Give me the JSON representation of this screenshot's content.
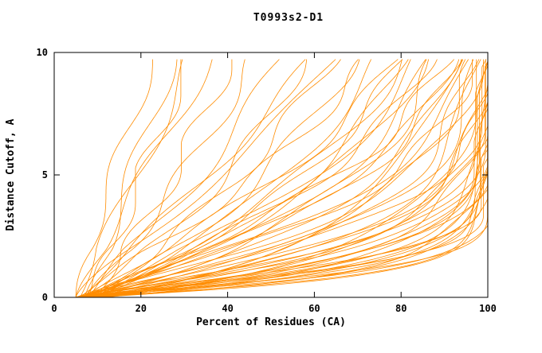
{
  "chart_data": {
    "type": "line",
    "title": "T0993s2-D1",
    "xlabel": "Percent of Residues (CA)",
    "ylabel": "Distance Cutoff, A",
    "xlim": [
      0,
      100
    ],
    "ylim": [
      0,
      10
    ],
    "xticks": [
      0,
      20,
      40,
      60,
      80,
      100
    ],
    "yticks": [
      0,
      5,
      10
    ],
    "grid": false,
    "legend": "none",
    "background": "#ffffff",
    "axis_color": "#000000",
    "line_color": "#ff8c00",
    "y_max_drawn": 9.72,
    "series_note": "Approximately 64 overlapping model GDT curves (percent of CA residues under distance cutoff). Each curve approximated as percent(y) = x0 + (100-x0)*(1-exp(-(y/a)^b)) plus a small sinusoidal wiggle, monotonically clamped.",
    "curve_params_format": [
      "a",
      "b",
      "x0",
      "amp",
      "freq",
      "phase"
    ],
    "curves": [
      [
        0.8,
        1.0,
        6,
        1.5,
        1.2,
        0.3
      ],
      [
        0.85,
        1.1,
        7,
        2.0,
        0.9,
        1.7
      ],
      [
        0.9,
        1.2,
        5,
        1.8,
        1.5,
        2.9
      ],
      [
        0.95,
        1.0,
        8,
        2.2,
        0.7,
        4.1
      ],
      [
        1.0,
        1.3,
        6,
        1.6,
        1.1,
        5.3
      ],
      [
        1.05,
        0.95,
        9,
        2.5,
        1.4,
        0.9
      ],
      [
        1.1,
        1.15,
        7,
        1.9,
        0.8,
        2.2
      ],
      [
        1.15,
        1.25,
        5,
        2.1,
        1.6,
        3.5
      ],
      [
        1.2,
        1.0,
        10,
        1.7,
        1.0,
        4.7
      ],
      [
        1.25,
        1.35,
        6,
        2.3,
        1.3,
        5.9
      ],
      [
        1.3,
        1.05,
        8,
        1.5,
        0.6,
        1.1
      ],
      [
        1.35,
        1.2,
        7,
        2.6,
        1.7,
        2.4
      ],
      [
        1.4,
        0.9,
        9,
        1.8,
        0.95,
        3.6
      ],
      [
        1.45,
        1.3,
        5,
        2.0,
        1.25,
        4.8
      ],
      [
        1.5,
        1.1,
        11,
        2.4,
        0.85,
        0.5
      ],
      [
        1.55,
        1.0,
        6,
        1.6,
        1.45,
        1.8
      ],
      [
        1.6,
        1.25,
        8,
        2.2,
        1.05,
        3.0
      ],
      [
        1.7,
        0.95,
        7,
        1.9,
        1.55,
        4.2
      ],
      [
        1.75,
        1.15,
        10,
        2.5,
        0.75,
        5.4
      ],
      [
        1.85,
        1.3,
        6,
        1.7,
        1.35,
        0.7
      ],
      [
        1.9,
        1.0,
        9,
        2.1,
        1.15,
        2.0
      ],
      [
        2.0,
        1.2,
        7,
        2.3,
        0.9,
        3.2
      ],
      [
        2.1,
        1.05,
        8,
        1.8,
        1.5,
        4.4
      ],
      [
        2.15,
        1.25,
        5,
        2.4,
        1.2,
        5.6
      ],
      [
        2.2,
        0.95,
        12,
        1.6,
        1.0,
        1.3
      ],
      [
        2.3,
        1.1,
        6,
        2.0,
        1.4,
        2.6
      ],
      [
        2.5,
        1.2,
        7,
        2.2,
        1.1,
        3.8
      ],
      [
        2.6,
        1.0,
        9,
        2.6,
        0.8,
        5.0
      ],
      [
        2.75,
        1.3,
        6,
        1.7,
        1.6,
        0.2
      ],
      [
        2.9,
        0.95,
        8,
        2.1,
        1.25,
        1.5
      ],
      [
        3.0,
        1.15,
        10,
        2.4,
        0.95,
        2.7
      ],
      [
        3.2,
        1.05,
        5,
        1.8,
        1.45,
        3.9
      ],
      [
        3.4,
        1.25,
        7,
        2.3,
        1.05,
        5.1
      ],
      [
        3.5,
        0.9,
        11,
        1.9,
        0.7,
        0.4
      ],
      [
        3.7,
        1.2,
        6,
        2.5,
        1.5,
        1.6
      ],
      [
        3.9,
        1.0,
        8,
        1.6,
        1.2,
        2.8
      ],
      [
        4.0,
        1.3,
        9,
        2.2,
        0.85,
        4.0
      ],
      [
        4.2,
        1.1,
        5,
        1.8,
        1.55,
        5.2
      ],
      [
        4.5,
        0.95,
        7,
        2.6,
        1.1,
        0.6
      ],
      [
        4.7,
        1.2,
        10,
        1.7,
        1.3,
        1.9
      ],
      [
        4.9,
        1.0,
        6,
        2.1,
        0.9,
        3.1
      ],
      [
        5.1,
        1.25,
        8,
        2.4,
        1.6,
        4.3
      ],
      [
        5.4,
        1.05,
        7,
        1.9,
        1.0,
        5.5
      ],
      [
        5.6,
        1.15,
        9,
        2.2,
        1.4,
        0.8
      ],
      [
        5.9,
        0.9,
        5,
        1.6,
        1.2,
        2.1
      ],
      [
        6.1,
        1.2,
        11,
        2.5,
        0.75,
        3.3
      ],
      [
        6.3,
        1.0,
        6,
        1.8,
        1.5,
        4.5
      ],
      [
        6.5,
        1.1,
        8,
        2.0,
        1.05,
        5.7
      ],
      [
        7.0,
        1.2,
        7,
        2.3,
        1.3,
        0.1
      ],
      [
        7.6,
        1.0,
        9,
        1.7,
        0.95,
        1.4
      ],
      [
        8.2,
        1.15,
        6,
        2.1,
        1.55,
        2.5
      ],
      [
        9.0,
        0.95,
        8,
        2.4,
        1.15,
        3.7
      ],
      [
        9.8,
        1.25,
        5,
        1.8,
        0.8,
        4.9
      ],
      [
        10.6,
        1.05,
        10,
        2.2,
        1.45,
        0.0
      ],
      [
        11.5,
        1.2,
        7,
        1.6,
        1.1,
        1.2
      ],
      [
        12.5,
        0.9,
        6,
        2.0,
        1.35,
        2.3
      ],
      [
        14.0,
        1.1,
        8,
        2.4,
        0.9,
        3.4
      ],
      [
        18.0,
        1.0,
        7,
        2.1,
        1.25,
        4.6
      ],
      [
        21.0,
        1.2,
        5,
        1.7,
        1.0,
        5.8
      ],
      [
        24.0,
        0.95,
        9,
        2.3,
        1.5,
        1.0
      ],
      [
        28.0,
        1.1,
        6,
        1.9,
        0.85,
        2.2
      ],
      [
        32.0,
        1.05,
        8,
        2.2,
        1.4,
        3.4
      ],
      [
        36.0,
        1.2,
        5,
        1.6,
        1.15,
        4.6
      ],
      [
        40.0,
        1.0,
        7,
        2.0,
        0.95,
        5.8
      ]
    ]
  }
}
